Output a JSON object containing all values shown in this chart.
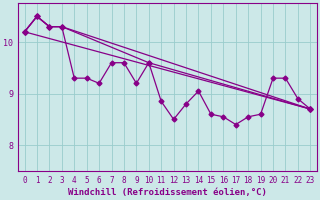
{
  "xlabel": "Windchill (Refroidissement éolien,°C)",
  "background_color": "#cce8e8",
  "line_color": "#880088",
  "grid_color": "#99cccc",
  "axis_color": "#880088",
  "spine_color": "#880088",
  "xlim": [
    -0.5,
    23.5
  ],
  "ylim": [
    7.5,
    10.75
  ],
  "yticks": [
    8,
    9,
    10
  ],
  "xticks": [
    0,
    1,
    2,
    3,
    4,
    5,
    6,
    7,
    8,
    9,
    10,
    11,
    12,
    13,
    14,
    15,
    16,
    17,
    18,
    19,
    20,
    21,
    22,
    23
  ],
  "line1_x": [
    0,
    1,
    2,
    3,
    4,
    5,
    6,
    7,
    8,
    9,
    10,
    11,
    12,
    13,
    14,
    15,
    16,
    17,
    18,
    19,
    20,
    21,
    22,
    23
  ],
  "line1_y": [
    10.2,
    10.5,
    10.3,
    10.3,
    9.3,
    9.3,
    9.2,
    9.6,
    9.6,
    9.2,
    9.6,
    8.85,
    8.5,
    8.8,
    9.05,
    8.6,
    8.55,
    8.4,
    8.55,
    8.6,
    9.3,
    9.3,
    8.9,
    8.7
  ],
  "line2_x": [
    0,
    1,
    2,
    3,
    10,
    23
  ],
  "line2_y": [
    10.2,
    10.5,
    10.3,
    10.3,
    9.6,
    8.7
  ],
  "line3_x": [
    0,
    1,
    2,
    3,
    23
  ],
  "line3_y": [
    10.2,
    10.5,
    10.3,
    10.3,
    8.7
  ],
  "line4_x": [
    0,
    23
  ],
  "line4_y": [
    10.2,
    8.7
  ],
  "markersize": 2.5,
  "linewidth": 0.9,
  "tick_fontsize": 5.5,
  "label_fontsize": 6.5
}
